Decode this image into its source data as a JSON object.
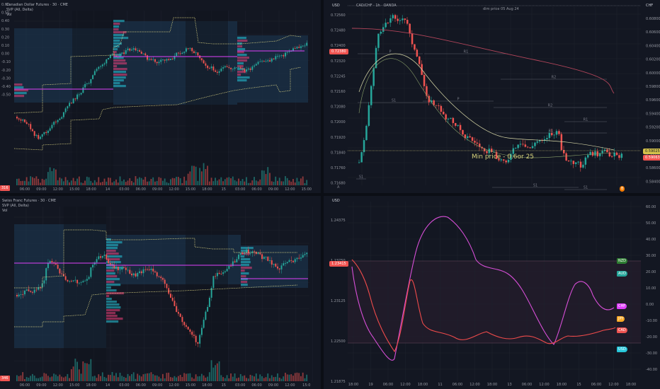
{
  "colors": {
    "bg": "#131722",
    "up": "#26a69a",
    "down": "#ef5350",
    "grid": "#1e222d",
    "vpoc": "#e040fb",
    "vp_up": "#26c6da",
    "vp_down": "#ec407a",
    "value_area": "#1d3b55",
    "dotted": "#f0e68c",
    "ma_red": "#b2455a",
    "ma_light": "#d9d9a8",
    "rsi_magenta": "#d84fd8",
    "rsi_red": "#f04b4b"
  },
  "top_left": {
    "legend": [
      "Canadian Dollar Futures · 30 · CME",
      "SVP (All, Delta)",
      "Vol"
    ],
    "y_ticks": [
      "0.60",
      "0.50",
      "0.40",
      "0.30",
      "0.20",
      "0.10",
      "0.00",
      "-0.10",
      "-0.20",
      "-0.30",
      "-0.40",
      "-0.50"
    ],
    "x_ticks": [
      "06:00",
      "09:00",
      "12:00",
      "15:00",
      "18:00",
      "14",
      "03:00",
      "06:00",
      "09:00",
      "12:00",
      "15:00",
      "18:00",
      "15",
      "03:00",
      "06:00",
      "09:00",
      "12:00",
      "15:00"
    ],
    "corner_icon": "lock-icon",
    "tag_value": "316"
  },
  "bottom_left": {
    "legend": [
      "Swiss Franc Futures · 30 · CME",
      "SVP (All, Delta)",
      "Vol"
    ],
    "x_ticks": [
      "06:00",
      "09:00",
      "12:00",
      "15:00",
      "18:00",
      "14",
      "03:00",
      "06:00",
      "09:00",
      "12:00",
      "15:00",
      "18:00",
      "15",
      "03:00",
      "06:00",
      "09:00",
      "12:00",
      "15:0"
    ],
    "tag_value": "346"
  },
  "top_right": {
    "currency_left": "USD",
    "currency_right": "CHF",
    "legend": "CAD/CHF · 1h · OANDA",
    "left_ticks": [
      "0.72560",
      "0.72480",
      "0.72400",
      "0.72320",
      "0.72245",
      "0.72160",
      "0.72080",
      "0.72000",
      "0.71920",
      "0.71840",
      "0.71760",
      "0.71680"
    ],
    "right_ticks": [
      "0.60800",
      "0.60600",
      "0.60400",
      "0.60200",
      "0.60000",
      "0.59800",
      "0.59600",
      "0.59400",
      "0.59200",
      "0.59000",
      "0.58800",
      "0.58600",
      "0.58400"
    ],
    "price_tag_left": "0.72380",
    "price_tag_right": "0.59025",
    "price_tag_right2": "0.59063",
    "annotation": "dim price 05 Aug 24",
    "overlay_text": "Min price - 0.6or 25",
    "pivots": [
      "P",
      "R1",
      "R2",
      "S1",
      "R1",
      "R2",
      "S1",
      "S1",
      "R1",
      "S1",
      "P"
    ],
    "bottom_letter": "A",
    "corner_badge": "B"
  },
  "bottom_right": {
    "currency_left": "USD",
    "left_ticks": [
      "1.24375",
      "1.23750",
      "1.23125",
      "1.22500",
      "1.21875"
    ],
    "price_tag": "1.23415",
    "right_ticks": [
      "60.00",
      "50.00",
      "40.00",
      "30.00",
      "20.00",
      "10.00",
      "0.00",
      "-10.00",
      "-20.00",
      "-30.00",
      "-40.00"
    ],
    "x_ticks": [
      "18:00",
      "19",
      "06:00",
      "12:00",
      "18:00",
      "11",
      "06:00",
      "12:00",
      "18:00",
      "13",
      "06:00",
      "12:00",
      "18:00",
      "15",
      "06:00",
      "12:00",
      "18:00"
    ],
    "badges": [
      {
        "label": "NZD",
        "color": "#2e7d32"
      },
      {
        "label": "AUD",
        "color": "#26a69a"
      },
      {
        "label": "CHF",
        "color": "#e040fb"
      },
      {
        "label": "JPY",
        "color": "#f9a825"
      },
      {
        "label": "CAD",
        "color": "#ef5350"
      },
      {
        "label": "USD",
        "color": "#26c6da"
      }
    ]
  }
}
